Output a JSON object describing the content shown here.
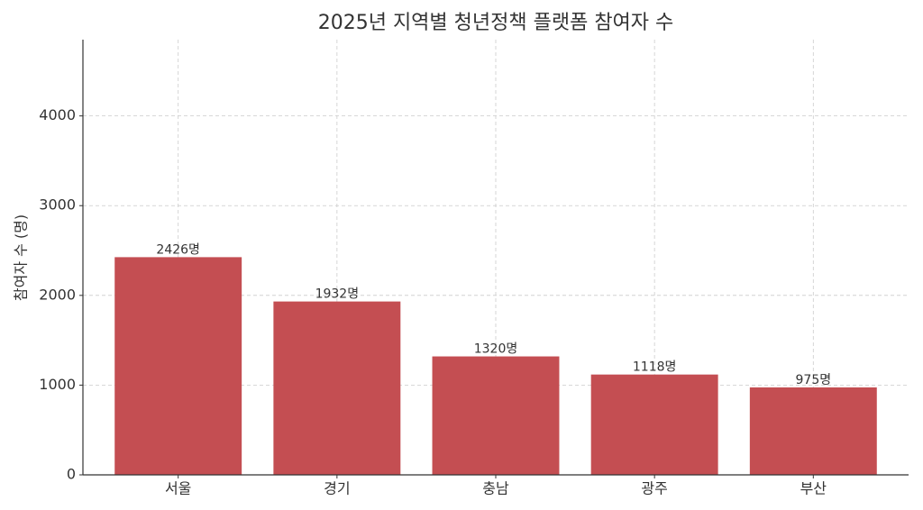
{
  "chart_data": {
    "type": "bar",
    "title": "2025년 지역별 청년정책 플랫폼 참여자 수",
    "y_label": "참여자 수 (명)",
    "categories": [
      "서울",
      "경기",
      "충남",
      "광주",
      "부산"
    ],
    "values": [
      2426,
      1932,
      1320,
      1118,
      975
    ],
    "value_labels": [
      "2426명",
      "1932명",
      "1320명",
      "1118명",
      "975명"
    ],
    "color": "#c44e52",
    "ylim": [
      0,
      4850
    ],
    "yticks": [
      0,
      1000,
      2000,
      3000,
      4000
    ],
    "grid": true
  }
}
